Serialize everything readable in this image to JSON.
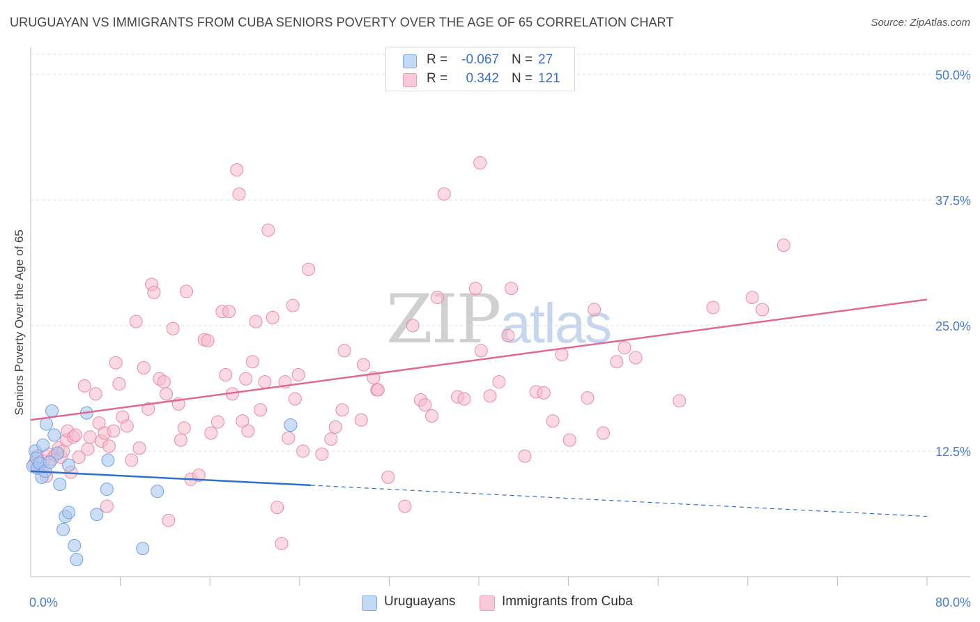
{
  "header": {
    "title": "URUGUAYAN VS IMMIGRANTS FROM CUBA SENIORS POVERTY OVER THE AGE OF 65 CORRELATION CHART",
    "source": "Source: ZipAtlas.com"
  },
  "watermark": {
    "zip": "ZIP",
    "atlas": "atlas"
  },
  "legend_top": {
    "rows": [
      {
        "r_label": "R =",
        "r_value": "-0.067",
        "n_label": "N =",
        "n_value": "27"
      },
      {
        "r_label": "R =",
        "r_value": "0.342",
        "n_label": "N =",
        "n_value": "121"
      }
    ]
  },
  "legend_bottom": {
    "series": [
      "Uruguayans",
      "Immigrants from Cuba"
    ]
  },
  "chart_data": {
    "type": "scatter",
    "title": "URUGUAYAN VS IMMIGRANTS FROM CUBA SENIORS POVERTY OVER THE AGE OF 65 CORRELATION CHART",
    "xlabel": "",
    "ylabel": "Seniors Poverty Over the Age of 65",
    "xlim": [
      0,
      80
    ],
    "ylim": [
      0,
      52
    ],
    "x_tick_labels": [
      "0.0%",
      "80.0%"
    ],
    "y_ticks": [
      12.5,
      25.0,
      37.5,
      50.0
    ],
    "y_tick_labels": [
      "12.5%",
      "25.0%",
      "37.5%",
      "50.0%"
    ],
    "grid": true,
    "legend_position": "top-center",
    "colors": {
      "uruguayans_fill": "#a9c8f0",
      "uruguayans_stroke": "#6f9fdc",
      "uruguayans_line": "#2f6fcb",
      "cuba_fill": "#f6b9cc",
      "cuba_stroke": "#e88aa8",
      "cuba_line": "#e06992",
      "axis_text": "#4a7cc9"
    },
    "series": [
      {
        "name": "Uruguayans",
        "r": -0.067,
        "n": 27,
        "trend": {
          "x0": 0,
          "y0": 10.5,
          "x1": 25,
          "y1": 9.1,
          "x_end": 80,
          "y_end": 6.0
        },
        "points": [
          [
            0.2,
            11.0
          ],
          [
            0.4,
            12.5
          ],
          [
            0.5,
            11.8
          ],
          [
            0.6,
            10.8
          ],
          [
            0.8,
            11.3
          ],
          [
            1.0,
            9.9
          ],
          [
            1.1,
            13.1
          ],
          [
            1.3,
            10.5
          ],
          [
            1.4,
            15.2
          ],
          [
            1.7,
            11.4
          ],
          [
            1.9,
            16.5
          ],
          [
            2.1,
            14.1
          ],
          [
            2.4,
            12.3
          ],
          [
            2.6,
            9.2
          ],
          [
            2.9,
            4.7
          ],
          [
            3.1,
            6.0
          ],
          [
            3.4,
            6.4
          ],
          [
            3.9,
            3.1
          ],
          [
            4.1,
            1.7
          ],
          [
            3.4,
            11.1
          ],
          [
            5.0,
            16.3
          ],
          [
            5.9,
            6.2
          ],
          [
            6.8,
            8.7
          ],
          [
            6.9,
            11.6
          ],
          [
            10.0,
            2.8
          ],
          [
            11.3,
            8.5
          ],
          [
            23.2,
            15.1
          ]
        ]
      },
      {
        "name": "Immigrants from Cuba",
        "r": 0.342,
        "n": 121,
        "trend": {
          "x0": 0,
          "y0": 15.6,
          "x1": 80,
          "y1": 27.6
        },
        "points": [
          [
            0.3,
            11.2
          ],
          [
            0.6,
            12.0
          ],
          [
            0.8,
            10.8
          ],
          [
            1.1,
            11.5
          ],
          [
            1.4,
            10.0
          ],
          [
            1.6,
            12.2
          ],
          [
            1.9,
            11.7
          ],
          [
            2.2,
            12.1
          ],
          [
            2.5,
            12.8
          ],
          [
            2.7,
            11.9
          ],
          [
            2.9,
            12.5
          ],
          [
            3.2,
            13.6
          ],
          [
            3.3,
            14.5
          ],
          [
            3.6,
            10.4
          ],
          [
            3.8,
            13.9
          ],
          [
            4.0,
            14.1
          ],
          [
            4.3,
            11.9
          ],
          [
            4.8,
            19.0
          ],
          [
            5.1,
            12.7
          ],
          [
            5.3,
            13.9
          ],
          [
            5.8,
            18.2
          ],
          [
            6.1,
            15.3
          ],
          [
            6.3,
            13.5
          ],
          [
            6.6,
            14.3
          ],
          [
            6.8,
            7.0
          ],
          [
            7.0,
            13.0
          ],
          [
            7.4,
            14.5
          ],
          [
            7.6,
            21.3
          ],
          [
            7.9,
            19.2
          ],
          [
            8.2,
            15.9
          ],
          [
            8.6,
            15.0
          ],
          [
            9.0,
            11.6
          ],
          [
            9.4,
            25.4
          ],
          [
            9.7,
            12.8
          ],
          [
            10.1,
            20.8
          ],
          [
            10.5,
            16.7
          ],
          [
            10.8,
            29.1
          ],
          [
            11.0,
            28.3
          ],
          [
            11.5,
            19.7
          ],
          [
            11.9,
            19.4
          ],
          [
            12.1,
            18.2
          ],
          [
            12.3,
            5.6
          ],
          [
            12.7,
            24.7
          ],
          [
            13.2,
            17.2
          ],
          [
            13.4,
            13.6
          ],
          [
            13.7,
            14.8
          ],
          [
            13.9,
            28.4
          ],
          [
            14.3,
            9.7
          ],
          [
            15.0,
            10.1
          ],
          [
            15.5,
            23.6
          ],
          [
            15.8,
            23.5
          ],
          [
            16.1,
            14.3
          ],
          [
            16.7,
            15.4
          ],
          [
            17.1,
            26.4
          ],
          [
            17.4,
            20.1
          ],
          [
            17.7,
            26.4
          ],
          [
            18.0,
            18.2
          ],
          [
            18.4,
            40.5
          ],
          [
            18.6,
            38.1
          ],
          [
            18.9,
            15.5
          ],
          [
            19.2,
            19.7
          ],
          [
            19.4,
            14.5
          ],
          [
            19.8,
            21.4
          ],
          [
            20.1,
            25.4
          ],
          [
            20.5,
            16.6
          ],
          [
            20.9,
            19.4
          ],
          [
            21.2,
            34.5
          ],
          [
            21.6,
            25.8
          ],
          [
            22.0,
            6.9
          ],
          [
            22.4,
            3.3
          ],
          [
            22.7,
            19.4
          ],
          [
            23.0,
            13.8
          ],
          [
            23.4,
            27.0
          ],
          [
            23.6,
            17.7
          ],
          [
            23.9,
            20.1
          ],
          [
            24.3,
            12.5
          ],
          [
            24.8,
            30.6
          ],
          [
            26.0,
            12.2
          ],
          [
            26.8,
            13.7
          ],
          [
            27.2,
            14.9
          ],
          [
            27.8,
            16.6
          ],
          [
            28.0,
            22.5
          ],
          [
            29.5,
            15.6
          ],
          [
            29.7,
            21.1
          ],
          [
            30.6,
            19.8
          ],
          [
            30.9,
            18.6
          ],
          [
            31.0,
            18.6
          ],
          [
            31.9,
            9.9
          ],
          [
            33.4,
            7.0
          ],
          [
            34.1,
            25.0
          ],
          [
            34.8,
            17.6
          ],
          [
            35.2,
            17.1
          ],
          [
            35.8,
            16.0
          ],
          [
            36.3,
            27.8
          ],
          [
            36.9,
            38.1
          ],
          [
            38.1,
            17.9
          ],
          [
            38.7,
            17.7
          ],
          [
            39.7,
            28.7
          ],
          [
            40.1,
            41.2
          ],
          [
            40.2,
            22.5
          ],
          [
            41.0,
            18.0
          ],
          [
            41.8,
            19.4
          ],
          [
            42.6,
            24.0
          ],
          [
            42.9,
            28.7
          ],
          [
            44.1,
            12.0
          ],
          [
            45.1,
            18.4
          ],
          [
            45.8,
            18.3
          ],
          [
            46.6,
            15.5
          ],
          [
            47.4,
            22.1
          ],
          [
            48.1,
            13.6
          ],
          [
            49.7,
            17.8
          ],
          [
            50.3,
            26.6
          ],
          [
            51.1,
            14.3
          ],
          [
            52.3,
            21.4
          ],
          [
            53.0,
            22.8
          ],
          [
            54.0,
            21.8
          ],
          [
            57.9,
            17.5
          ],
          [
            60.9,
            26.8
          ],
          [
            64.4,
            27.8
          ],
          [
            65.3,
            26.6
          ],
          [
            67.2,
            33.0
          ]
        ]
      }
    ]
  }
}
